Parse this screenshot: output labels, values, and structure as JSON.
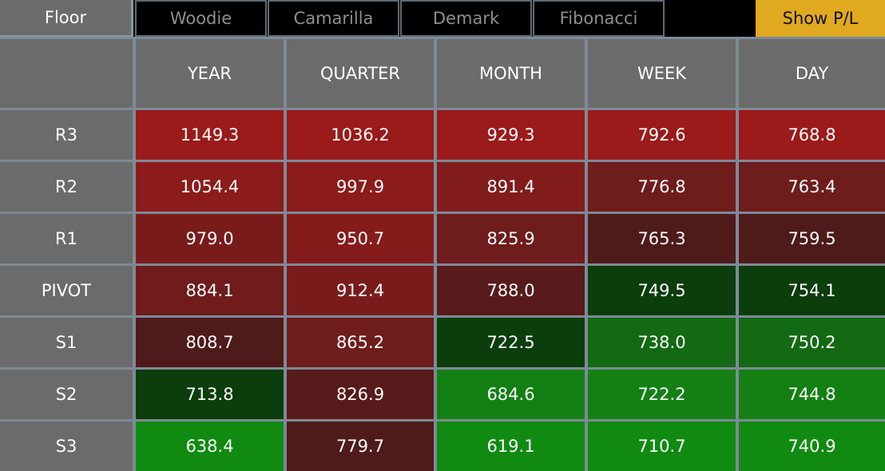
{
  "tabs": [
    {
      "label": "Floor",
      "state": "active"
    },
    {
      "label": "Woodie",
      "state": "inactive"
    },
    {
      "label": "Camarilla",
      "state": "inactive"
    },
    {
      "label": "Demark",
      "state": "inactive"
    },
    {
      "label": "Fibonacci",
      "state": "inactive"
    }
  ],
  "show_pl_label": "Show P/L",
  "columns": [
    "YEAR",
    "QUARTER",
    "MONTH",
    "WEEK",
    "DAY"
  ],
  "rows": [
    {
      "label": "R3",
      "values": [
        "1149.3",
        "1036.2",
        "929.3",
        "792.6",
        "768.8"
      ],
      "colors": [
        "#9b1a1a",
        "#9b1a1a",
        "#9b1a1a",
        "#9b1a1a",
        "#9b1a1a"
      ]
    },
    {
      "label": "R2",
      "values": [
        "1054.4",
        "997.9",
        "891.4",
        "776.8",
        "763.4"
      ],
      "colors": [
        "#8c1b1b",
        "#8c1b1b",
        "#821c1c",
        "#6f1c1c",
        "#6f1c1c"
      ]
    },
    {
      "label": "R1",
      "values": [
        "979.0",
        "950.7",
        "825.9",
        "765.3",
        "759.5"
      ],
      "colors": [
        "#7a1b1b",
        "#861b1b",
        "#6e1c1c",
        "#4f1a1a",
        "#4f1a1a"
      ]
    },
    {
      "label": "PIVOT",
      "values": [
        "884.1",
        "912.4",
        "788.0",
        "749.5",
        "754.1"
      ],
      "colors": [
        "#701c1c",
        "#7a1b1b",
        "#581a1a",
        "#0c3d0c",
        "#0c3d0c"
      ]
    },
    {
      "label": "S1",
      "values": [
        "808.7",
        "865.2",
        "722.5",
        "738.0",
        "750.2"
      ],
      "colors": [
        "#4f1a1a",
        "#6e1c1c",
        "#0c3d0c",
        "#136a13",
        "#136a13"
      ]
    },
    {
      "label": "S2",
      "values": [
        "713.8",
        "826.9",
        "684.6",
        "722.2",
        "744.8"
      ],
      "colors": [
        "#0c3d0c",
        "#581a1a",
        "#138013",
        "#148014",
        "#148014"
      ]
    },
    {
      "label": "S3",
      "values": [
        "638.4",
        "779.7",
        "619.1",
        "710.7",
        "740.9"
      ],
      "colors": [
        "#118a11",
        "#4f1a1a",
        "#118a11",
        "#118a11",
        "#118a11"
      ]
    }
  ]
}
